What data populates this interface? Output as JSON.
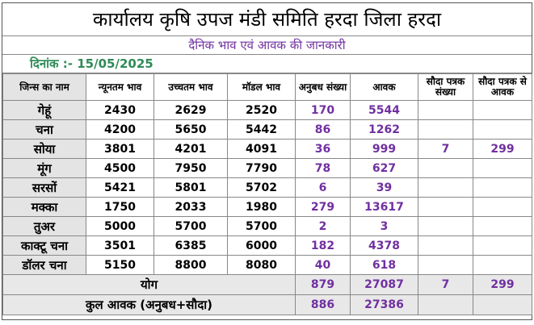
{
  "header": {
    "title": "कार्यालय कृषि उपज मंडी समिति हरदा जिला हरदा",
    "subtitle": "दैनिक भाव एवं आवक की जानकारी",
    "date_text": "दिनांक :- 15/05/2025"
  },
  "columns": [
    "जिन्स का नाम",
    "न्यूनतम भाव",
    "उच्चतम भाव",
    "मॉडल भाव",
    "अनुबध संख्या",
    "आवक",
    "सौदा पत्रक संख्या",
    "सौदा पत्रक से आवक"
  ],
  "rows": [
    {
      "name": "गेहूं",
      "min": "2430",
      "max": "2629",
      "model": "2520",
      "anubandh": "170",
      "aavak": "5544",
      "sauda_count": "",
      "sauda_aavak": ""
    },
    {
      "name": "चना",
      "min": "4200",
      "max": "5650",
      "model": "5442",
      "anubandh": "86",
      "aavak": "1262",
      "sauda_count": "",
      "sauda_aavak": ""
    },
    {
      "name": "सोया",
      "min": "3801",
      "max": "4201",
      "model": "4091",
      "anubandh": "36",
      "aavak": "999",
      "sauda_count": "7",
      "sauda_aavak": "299"
    },
    {
      "name": "मूंग",
      "min": "4500",
      "max": "7950",
      "model": "7790",
      "anubandh": "78",
      "aavak": "627",
      "sauda_count": "",
      "sauda_aavak": ""
    },
    {
      "name": "सरसों",
      "min": "5421",
      "max": "5801",
      "model": "5702",
      "anubandh": "6",
      "aavak": "39",
      "sauda_count": "",
      "sauda_aavak": ""
    },
    {
      "name": "मक्का",
      "min": "1750",
      "max": "2033",
      "model": "1980",
      "anubandh": "279",
      "aavak": "13617",
      "sauda_count": "",
      "sauda_aavak": ""
    },
    {
      "name": "तुअर",
      "min": "5000",
      "max": "5700",
      "model": "5700",
      "anubandh": "2",
      "aavak": "3",
      "sauda_count": "",
      "sauda_aavak": ""
    },
    {
      "name": "काक्टू चना",
      "min": "3501",
      "max": "6385",
      "model": "6000",
      "anubandh": "182",
      "aavak": "4378",
      "sauda_count": "",
      "sauda_aavak": ""
    },
    {
      "name": "डॉलर चना",
      "min": "5150",
      "max": "8800",
      "model": "8080",
      "anubandh": "40",
      "aavak": "618",
      "sauda_count": "",
      "sauda_aavak": ""
    }
  ],
  "totals": {
    "yog_label": "योग",
    "yog_anubandh": "879",
    "yog_aavak": "27087",
    "yog_sauda_count": "7",
    "yog_sauda_aavak": "299",
    "kul_label": "कुल आवक (अनुबध+सौदा)",
    "kul_anubandh": "886",
    "kul_aavak": "27386"
  }
}
